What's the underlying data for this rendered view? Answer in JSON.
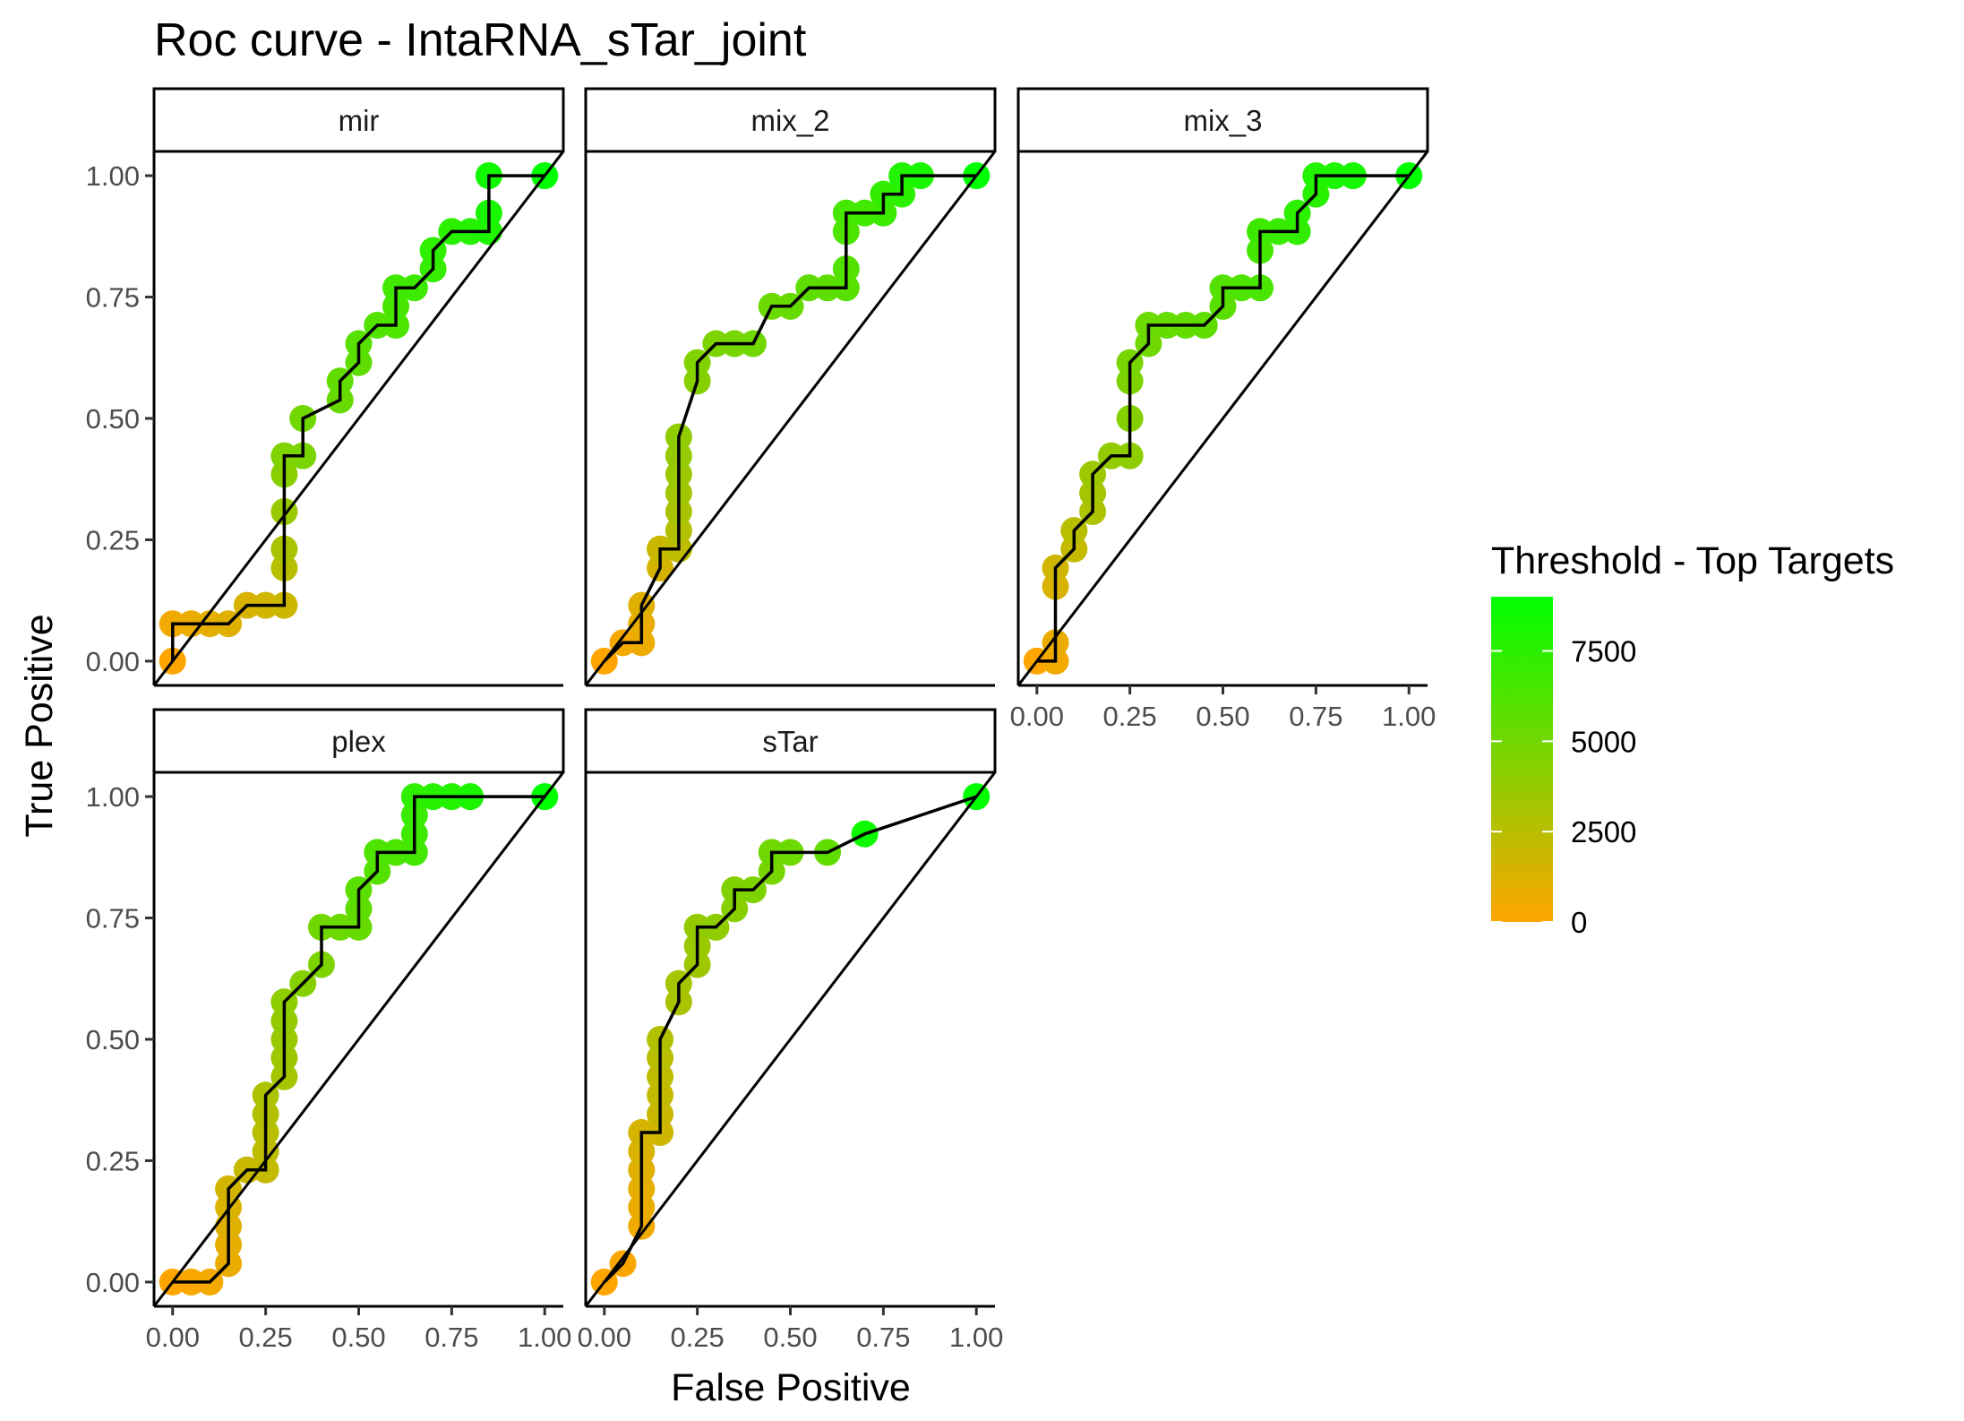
{
  "chart_data": {
    "type": "line",
    "title": "Roc curve - IntaRNA_sTar_joint",
    "xlabel": "False Positive",
    "ylabel": "True Positive",
    "xlim": [
      -0.05,
      1.05
    ],
    "ylim": [
      -0.05,
      1.05
    ],
    "x_ticks": [
      "0.00",
      "0.25",
      "0.50",
      "0.75",
      "1.00"
    ],
    "y_ticks": [
      "0.00",
      "0.25",
      "0.50",
      "0.75",
      "1.00"
    ],
    "grid": false,
    "legend": {
      "title": "Threshold - Top Targets",
      "placement": "right",
      "type": "gradient",
      "low_color": "#FFA500",
      "high_color": "#00FF00",
      "range": [
        0,
        9000
      ],
      "breaks": [
        "0",
        "2500",
        "5000",
        "7500"
      ]
    },
    "panels": [
      {
        "name": "mir",
        "points": [
          [
            0,
            0,
            0
          ],
          [
            0,
            0.077,
            500
          ],
          [
            0.05,
            0.077,
            700
          ],
          [
            0.1,
            0.077,
            900
          ],
          [
            0.15,
            0.077,
            1100
          ],
          [
            0.2,
            0.115,
            1400
          ],
          [
            0.25,
            0.115,
            1600
          ],
          [
            0.3,
            0.115,
            1800
          ],
          [
            0.3,
            0.192,
            2500
          ],
          [
            0.3,
            0.231,
            3000
          ],
          [
            0.3,
            0.308,
            3600
          ],
          [
            0.3,
            0.385,
            4200
          ],
          [
            0.3,
            0.423,
            4500
          ],
          [
            0.35,
            0.423,
            4700
          ],
          [
            0.35,
            0.5,
            5000
          ],
          [
            0.45,
            0.538,
            5300
          ],
          [
            0.45,
            0.577,
            5500
          ],
          [
            0.5,
            0.615,
            5700
          ],
          [
            0.5,
            0.654,
            5900
          ],
          [
            0.55,
            0.692,
            6100
          ],
          [
            0.6,
            0.692,
            6300
          ],
          [
            0.6,
            0.731,
            6500
          ],
          [
            0.6,
            0.769,
            6700
          ],
          [
            0.65,
            0.769,
            6900
          ],
          [
            0.7,
            0.808,
            7100
          ],
          [
            0.7,
            0.846,
            7300
          ],
          [
            0.75,
            0.885,
            7500
          ],
          [
            0.8,
            0.885,
            7700
          ],
          [
            0.85,
            0.885,
            7900
          ],
          [
            0.85,
            0.923,
            8100
          ],
          [
            0.85,
            1.0,
            8400
          ],
          [
            1.0,
            1.0,
            9000
          ]
        ]
      },
      {
        "name": "mix_2",
        "points": [
          [
            0,
            0,
            0
          ],
          [
            0.05,
            0.038,
            400
          ],
          [
            0.1,
            0.038,
            600
          ],
          [
            0.1,
            0.077,
            800
          ],
          [
            0.1,
            0.115,
            1100
          ],
          [
            0.15,
            0.192,
            1500
          ],
          [
            0.15,
            0.231,
            1900
          ],
          [
            0.2,
            0.231,
            2300
          ],
          [
            0.2,
            0.269,
            2700
          ],
          [
            0.2,
            0.308,
            3000
          ],
          [
            0.2,
            0.346,
            3300
          ],
          [
            0.2,
            0.385,
            3500
          ],
          [
            0.2,
            0.423,
            3700
          ],
          [
            0.2,
            0.462,
            3900
          ],
          [
            0.25,
            0.577,
            4200
          ],
          [
            0.25,
            0.615,
            4400
          ],
          [
            0.3,
            0.654,
            4600
          ],
          [
            0.35,
            0.654,
            4800
          ],
          [
            0.4,
            0.654,
            5000
          ],
          [
            0.45,
            0.731,
            5200
          ],
          [
            0.5,
            0.731,
            5400
          ],
          [
            0.55,
            0.769,
            5600
          ],
          [
            0.6,
            0.769,
            5700
          ],
          [
            0.65,
            0.769,
            5900
          ],
          [
            0.65,
            0.808,
            6100
          ],
          [
            0.65,
            0.885,
            6300
          ],
          [
            0.65,
            0.923,
            6500
          ],
          [
            0.7,
            0.923,
            6700
          ],
          [
            0.75,
            0.923,
            6900
          ],
          [
            0.75,
            0.962,
            7200
          ],
          [
            0.8,
            0.962,
            7500
          ],
          [
            0.8,
            1.0,
            7800
          ],
          [
            0.85,
            1.0,
            8100
          ],
          [
            1.0,
            1.0,
            9000
          ]
        ]
      },
      {
        "name": "mix_3",
        "points": [
          [
            0,
            0,
            0
          ],
          [
            0.05,
            0.0,
            400
          ],
          [
            0.05,
            0.038,
            700
          ],
          [
            0.05,
            0.154,
            1300
          ],
          [
            0.05,
            0.192,
            1700
          ],
          [
            0.1,
            0.231,
            2100
          ],
          [
            0.1,
            0.269,
            2500
          ],
          [
            0.15,
            0.308,
            2900
          ],
          [
            0.15,
            0.346,
            3200
          ],
          [
            0.15,
            0.385,
            3500
          ],
          [
            0.2,
            0.423,
            3800
          ],
          [
            0.25,
            0.423,
            4000
          ],
          [
            0.25,
            0.5,
            4300
          ],
          [
            0.25,
            0.577,
            4600
          ],
          [
            0.25,
            0.615,
            4800
          ],
          [
            0.3,
            0.654,
            5000
          ],
          [
            0.3,
            0.692,
            5200
          ],
          [
            0.35,
            0.692,
            5400
          ],
          [
            0.4,
            0.692,
            5500
          ],
          [
            0.45,
            0.692,
            5600
          ],
          [
            0.5,
            0.731,
            5800
          ],
          [
            0.5,
            0.769,
            6000
          ],
          [
            0.55,
            0.769,
            6200
          ],
          [
            0.6,
            0.769,
            6400
          ],
          [
            0.6,
            0.846,
            6600
          ],
          [
            0.6,
            0.885,
            6800
          ],
          [
            0.65,
            0.885,
            7000
          ],
          [
            0.7,
            0.885,
            7200
          ],
          [
            0.7,
            0.923,
            7400
          ],
          [
            0.75,
            0.962,
            7600
          ],
          [
            0.75,
            1.0,
            7800
          ],
          [
            0.8,
            1.0,
            8000
          ],
          [
            0.85,
            1.0,
            8200
          ],
          [
            1.0,
            1.0,
            9000
          ]
        ]
      },
      {
        "name": "plex",
        "points": [
          [
            0,
            0,
            0
          ],
          [
            0.05,
            0.0,
            200
          ],
          [
            0.1,
            0.0,
            400
          ],
          [
            0.15,
            0.038,
            700
          ],
          [
            0.15,
            0.077,
            900
          ],
          [
            0.15,
            0.115,
            1100
          ],
          [
            0.15,
            0.154,
            1300
          ],
          [
            0.15,
            0.192,
            1600
          ],
          [
            0.2,
            0.231,
            1900
          ],
          [
            0.25,
            0.231,
            2100
          ],
          [
            0.25,
            0.269,
            2300
          ],
          [
            0.25,
            0.308,
            2500
          ],
          [
            0.25,
            0.346,
            2700
          ],
          [
            0.25,
            0.385,
            2900
          ],
          [
            0.3,
            0.423,
            3200
          ],
          [
            0.3,
            0.462,
            3400
          ],
          [
            0.3,
            0.5,
            3600
          ],
          [
            0.3,
            0.538,
            3800
          ],
          [
            0.3,
            0.577,
            4000
          ],
          [
            0.35,
            0.615,
            4300
          ],
          [
            0.4,
            0.654,
            4600
          ],
          [
            0.4,
            0.731,
            5000
          ],
          [
            0.45,
            0.731,
            5200
          ],
          [
            0.5,
            0.731,
            5400
          ],
          [
            0.5,
            0.769,
            5600
          ],
          [
            0.5,
            0.808,
            5800
          ],
          [
            0.55,
            0.846,
            6000
          ],
          [
            0.55,
            0.885,
            6200
          ],
          [
            0.6,
            0.885,
            6400
          ],
          [
            0.65,
            0.885,
            6600
          ],
          [
            0.65,
            0.923,
            6800
          ],
          [
            0.65,
            0.962,
            7000
          ],
          [
            0.65,
            1.0,
            7300
          ],
          [
            0.7,
            1.0,
            7600
          ],
          [
            0.75,
            1.0,
            7800
          ],
          [
            0.8,
            1.0,
            8000
          ],
          [
            1.0,
            1.0,
            9000
          ]
        ]
      },
      {
        "name": "sTar",
        "points": [
          [
            0,
            0,
            0
          ],
          [
            0.05,
            0.038,
            200
          ],
          [
            0.1,
            0.115,
            500
          ],
          [
            0.1,
            0.154,
            700
          ],
          [
            0.1,
            0.192,
            900
          ],
          [
            0.1,
            0.231,
            1100
          ],
          [
            0.1,
            0.269,
            1300
          ],
          [
            0.1,
            0.308,
            1500
          ],
          [
            0.15,
            0.308,
            1700
          ],
          [
            0.15,
            0.346,
            1900
          ],
          [
            0.15,
            0.385,
            2100
          ],
          [
            0.15,
            0.423,
            2300
          ],
          [
            0.15,
            0.462,
            2500
          ],
          [
            0.15,
            0.5,
            2700
          ],
          [
            0.2,
            0.577,
            3000
          ],
          [
            0.2,
            0.615,
            3200
          ],
          [
            0.25,
            0.654,
            3400
          ],
          [
            0.25,
            0.692,
            3600
          ],
          [
            0.25,
            0.731,
            3800
          ],
          [
            0.3,
            0.731,
            4000
          ],
          [
            0.35,
            0.769,
            4200
          ],
          [
            0.35,
            0.808,
            4400
          ],
          [
            0.4,
            0.808,
            4600
          ],
          [
            0.45,
            0.846,
            4800
          ],
          [
            0.45,
            0.885,
            5000
          ],
          [
            0.5,
            0.885,
            5200
          ],
          [
            0.6,
            0.885,
            5600
          ],
          [
            0.7,
            0.923,
            8500
          ],
          [
            1.0,
            1.0,
            9000
          ]
        ]
      }
    ]
  }
}
